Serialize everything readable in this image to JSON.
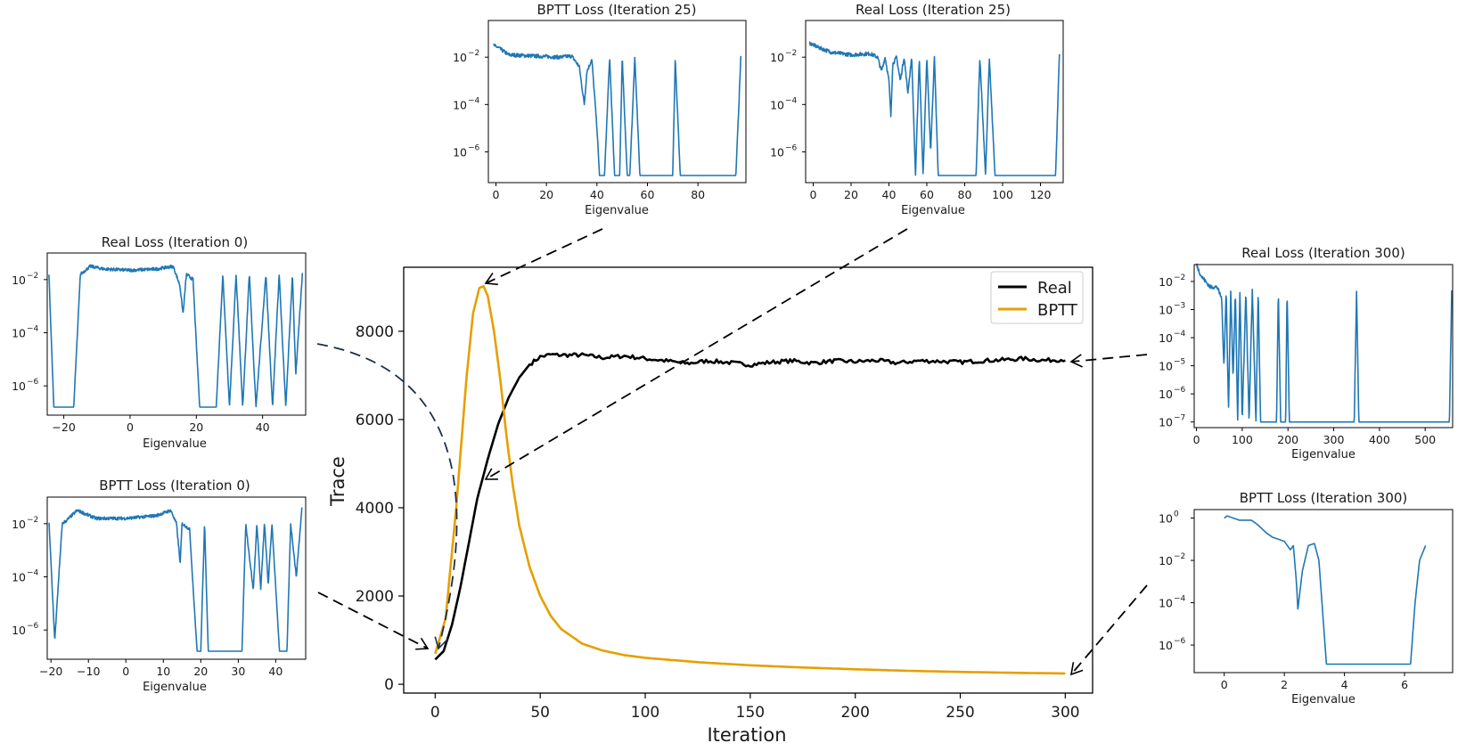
{
  "chart_data": [
    {
      "id": "main",
      "type": "line",
      "xlabel": "Iteration",
      "ylabel": "Trace",
      "xlim": [
        -15,
        313
      ],
      "ylim": [
        -200,
        9450
      ],
      "xticks": [
        0,
        50,
        100,
        150,
        200,
        250,
        300
      ],
      "yticks": [
        0,
        2000,
        4000,
        6000,
        8000
      ],
      "legend": {
        "position": "upper right"
      },
      "series": [
        {
          "name": "Real",
          "color": "#000000",
          "points": [
            [
              0,
              560
            ],
            [
              4,
              750
            ],
            [
              8,
              1350
            ],
            [
              12,
              2200
            ],
            [
              16,
              3200
            ],
            [
              20,
              4200
            ],
            [
              25,
              5100
            ],
            [
              30,
              5900
            ],
            [
              35,
              6500
            ],
            [
              40,
              6950
            ],
            [
              45,
              7250
            ],
            [
              50,
              7420
            ],
            [
              55,
              7470
            ],
            [
              60,
              7460
            ],
            [
              70,
              7460
            ],
            [
              80,
              7400
            ],
            [
              90,
              7440
            ],
            [
              100,
              7380
            ],
            [
              110,
              7330
            ],
            [
              120,
              7270
            ],
            [
              130,
              7330
            ],
            [
              140,
              7290
            ],
            [
              150,
              7240
            ],
            [
              160,
              7300
            ],
            [
              170,
              7330
            ],
            [
              180,
              7280
            ],
            [
              190,
              7330
            ],
            [
              200,
              7310
            ],
            [
              210,
              7340
            ],
            [
              220,
              7280
            ],
            [
              230,
              7330
            ],
            [
              240,
              7320
            ],
            [
              250,
              7300
            ],
            [
              260,
              7330
            ],
            [
              270,
              7350
            ],
            [
              280,
              7380
            ],
            [
              290,
              7340
            ],
            [
              300,
              7360
            ]
          ],
          "noise": 45
        },
        {
          "name": "BPTT",
          "color": "#e69f00",
          "points": [
            [
              0,
              690
            ],
            [
              5,
              1500
            ],
            [
              10,
              4000
            ],
            [
              15,
              7000
            ],
            [
              18,
              8400
            ],
            [
              21,
              8980
            ],
            [
              23,
              9020
            ],
            [
              25,
              8800
            ],
            [
              28,
              8000
            ],
            [
              31,
              6900
            ],
            [
              34,
              5600
            ],
            [
              37,
              4500
            ],
            [
              40,
              3600
            ],
            [
              45,
              2650
            ],
            [
              50,
              2000
            ],
            [
              55,
              1550
            ],
            [
              60,
              1250
            ],
            [
              70,
              920
            ],
            [
              80,
              760
            ],
            [
              90,
              660
            ],
            [
              100,
              600
            ],
            [
              125,
              500
            ],
            [
              150,
              430
            ],
            [
              175,
              380
            ],
            [
              200,
              340
            ],
            [
              225,
              305
            ],
            [
              250,
              280
            ],
            [
              275,
              260
            ],
            [
              300,
              245
            ]
          ]
        }
      ]
    },
    {
      "id": "bptt25",
      "type": "line",
      "title": "BPTT Loss (Iteration 25)",
      "xlabel": "Eigenvalue",
      "yscale": "log",
      "xlim": [
        -3,
        99
      ],
      "ylog": [
        -7.3,
        -0.45
      ],
      "xticks": [
        0,
        20,
        40,
        60,
        80
      ],
      "yticks": [
        -2,
        -4,
        -6
      ],
      "color": "#1f77b4",
      "segments": [
        [
          -1,
          -1.5,
          "s"
        ],
        [
          1,
          -1.6,
          "s"
        ],
        [
          5,
          -1.9,
          "s"
        ],
        [
          15,
          -1.95,
          "s"
        ],
        [
          25,
          -2.0,
          "s"
        ],
        [
          30,
          -1.95,
          "s"
        ],
        [
          33,
          -2.4,
          "s"
        ],
        [
          35,
          -4.0,
          "s"
        ],
        [
          36,
          -2.6,
          "s"
        ],
        [
          38,
          -2.1,
          "s"
        ],
        [
          40,
          -5.0,
          "s"
        ],
        [
          41,
          -7.0,
          "s"
        ],
        [
          43,
          -7.0,
          "s"
        ],
        [
          45,
          -2.0,
          "s"
        ],
        [
          47,
          -7.0,
          "s"
        ],
        [
          49,
          -7.0,
          "s"
        ],
        [
          50,
          -2.0,
          "s"
        ],
        [
          52,
          -7.0,
          "s"
        ],
        [
          53,
          -7.0,
          "s"
        ],
        [
          55,
          -2.0,
          "s"
        ],
        [
          57,
          -7.0,
          "s"
        ],
        [
          70,
          -7.0,
          "s"
        ],
        [
          71,
          -2.0,
          "s"
        ],
        [
          73,
          -7.0,
          "s"
        ],
        [
          95,
          -7.0,
          "s"
        ],
        [
          97,
          -2.0,
          "s"
        ]
      ],
      "noise": 0.08
    },
    {
      "id": "real25",
      "type": "line",
      "title": "Real Loss (Iteration 25)",
      "xlabel": "Eigenvalue",
      "yscale": "log",
      "xlim": [
        -4,
        132
      ],
      "ylog": [
        -7.3,
        -0.45
      ],
      "xticks": [
        0,
        20,
        40,
        60,
        80,
        100,
        120
      ],
      "yticks": [
        -2,
        -4,
        -6
      ],
      "color": "#1f77b4",
      "segments": [
        [
          -2,
          -1.4,
          "s"
        ],
        [
          3,
          -1.6,
          "s"
        ],
        [
          10,
          -1.8,
          "s"
        ],
        [
          20,
          -1.9,
          "s"
        ],
        [
          30,
          -1.85,
          "s"
        ],
        [
          34,
          -2.0,
          "s"
        ],
        [
          36,
          -2.6,
          "s"
        ],
        [
          38,
          -2.0,
          "s"
        ],
        [
          40,
          -3.0,
          "s"
        ],
        [
          41,
          -4.5,
          "s"
        ],
        [
          42,
          -2.3,
          "s"
        ],
        [
          44,
          -2.0,
          "s"
        ],
        [
          46,
          -3.0,
          "s"
        ],
        [
          48,
          -2.0,
          "s"
        ],
        [
          50,
          -3.5,
          "s"
        ],
        [
          52,
          -2.0,
          "s"
        ],
        [
          54,
          -7.0,
          "s"
        ],
        [
          56,
          -2.0,
          "s"
        ],
        [
          58,
          -7.0,
          "s"
        ],
        [
          60,
          -2.0,
          "s"
        ],
        [
          62,
          -6.0,
          "s"
        ],
        [
          64,
          -2.0,
          "s"
        ],
        [
          66,
          -7.0,
          "s"
        ],
        [
          86,
          -7.0,
          "s"
        ],
        [
          88,
          -2.0,
          "s"
        ],
        [
          91,
          -7.0,
          "s"
        ],
        [
          93,
          -2.0,
          "s"
        ],
        [
          96,
          -7.0,
          "s"
        ],
        [
          128,
          -7.0,
          "s"
        ],
        [
          130,
          -1.9,
          "s"
        ]
      ],
      "noise": 0.08
    },
    {
      "id": "real0",
      "type": "line",
      "title": "Real Loss (Iteration 0)",
      "xlabel": "Eigenvalue",
      "yscale": "log",
      "xlim": [
        -25,
        53
      ],
      "ylog": [
        -7.1,
        -1.0
      ],
      "xticks": [
        -20,
        0,
        20,
        40
      ],
      "yticks": [
        -2,
        -4,
        -6
      ],
      "color": "#1f77b4",
      "segments": [
        [
          -24.5,
          -1.8,
          "s"
        ],
        [
          -23,
          -6.8,
          "s"
        ],
        [
          -17,
          -6.8,
          "s"
        ],
        [
          -15,
          -1.8,
          "s"
        ],
        [
          -12,
          -1.5,
          "s"
        ],
        [
          -8,
          -1.6,
          "s"
        ],
        [
          0,
          -1.65,
          "s"
        ],
        [
          8,
          -1.6,
          "s"
        ],
        [
          13,
          -1.5,
          "s"
        ],
        [
          15,
          -2.2,
          "s"
        ],
        [
          16,
          -3.3,
          "s"
        ],
        [
          17,
          -1.8,
          "s"
        ],
        [
          19,
          -2.0,
          "s"
        ],
        [
          21,
          -6.8,
          "s"
        ],
        [
          26,
          -6.8,
          "s"
        ],
        [
          28,
          -1.8,
          "s"
        ],
        [
          30,
          -6.8,
          "s"
        ],
        [
          32,
          -1.8,
          "s"
        ],
        [
          34,
          -6.8,
          "s"
        ],
        [
          36,
          -1.8,
          "s"
        ],
        [
          38,
          -6.8,
          "s"
        ],
        [
          41,
          -1.8,
          "s"
        ],
        [
          43,
          -6.8,
          "s"
        ],
        [
          45,
          -1.8,
          "s"
        ],
        [
          47,
          -6.8,
          "s"
        ],
        [
          49,
          -1.8,
          "s"
        ],
        [
          50,
          -5.6,
          "s"
        ],
        [
          52,
          -1.8,
          "s"
        ]
      ],
      "noise": 0.06
    },
    {
      "id": "bptt0",
      "type": "line",
      "title": "BPTT Loss (Iteration 0)",
      "xlabel": "Eigenvalue",
      "yscale": "log",
      "xlim": [
        -21,
        48
      ],
      "ylog": [
        -7.1,
        -1.0
      ],
      "xticks": [
        -20,
        -10,
        0,
        10,
        20,
        30,
        40
      ],
      "yticks": [
        -2,
        -4,
        -6
      ],
      "color": "#1f77b4",
      "segments": [
        [
          -20.5,
          -2.0,
          "s"
        ],
        [
          -19,
          -6.4,
          "s"
        ],
        [
          -17,
          -2.0,
          "s"
        ],
        [
          -16,
          -1.9,
          "s"
        ],
        [
          -13,
          -1.5,
          "s"
        ],
        [
          -8,
          -1.8,
          "s"
        ],
        [
          0,
          -1.8,
          "s"
        ],
        [
          8,
          -1.7,
          "s"
        ],
        [
          12,
          -1.5,
          "s"
        ],
        [
          13.5,
          -2.0,
          "s"
        ],
        [
          14.5,
          -3.5,
          "s"
        ],
        [
          15,
          -2.0,
          "s"
        ],
        [
          17,
          -2.2,
          "s"
        ],
        [
          19,
          -6.8,
          "s"
        ],
        [
          20,
          -6.8,
          "s"
        ],
        [
          21,
          -2.0,
          "s"
        ],
        [
          22,
          -6.8,
          "s"
        ],
        [
          31,
          -6.8,
          "s"
        ],
        [
          32,
          -2.0,
          "s"
        ],
        [
          34,
          -4.5,
          "s"
        ],
        [
          35,
          -2.0,
          "s"
        ],
        [
          36,
          -4.5,
          "s"
        ],
        [
          37,
          -2.0,
          "s"
        ],
        [
          38,
          -4.3,
          "s"
        ],
        [
          39,
          -2.0,
          "s"
        ],
        [
          41,
          -6.8,
          "s"
        ],
        [
          43,
          -6.8,
          "s"
        ],
        [
          44,
          -2.0,
          "s"
        ],
        [
          45.5,
          -4.0,
          "s"
        ],
        [
          47,
          -1.4,
          "s"
        ]
      ],
      "noise": 0.06
    },
    {
      "id": "real300",
      "type": "line",
      "title": "Real Loss (Iteration 300)",
      "xlabel": "Eigenvalue",
      "yscale": "log",
      "xlim": [
        -5,
        560
      ],
      "ylog": [
        -7.2,
        -1.4
      ],
      "xticks": [
        0,
        100,
        200,
        300,
        400,
        500
      ],
      "yticks": [
        -2,
        -3,
        -4,
        -5,
        -6,
        -7
      ],
      "color": "#1f77b4",
      "segments": [
        [
          0,
          -1.4,
          "s"
        ],
        [
          10,
          -1.8,
          "s"
        ],
        [
          30,
          -2.2,
          "s"
        ],
        [
          45,
          -2.2,
          "s"
        ],
        [
          55,
          -2.6,
          "s"
        ],
        [
          60,
          -5.0,
          "s"
        ],
        [
          65,
          -2.3,
          "s"
        ],
        [
          70,
          -6.6,
          "s"
        ],
        [
          75,
          -2.3,
          "s"
        ],
        [
          80,
          -5.5,
          "s"
        ],
        [
          85,
          -2.3,
          "s"
        ],
        [
          90,
          -7.0,
          "s"
        ],
        [
          95,
          -2.3,
          "s"
        ],
        [
          100,
          -7.0,
          "s"
        ],
        [
          108,
          -2.3,
          "s"
        ],
        [
          115,
          -7.0,
          "s"
        ],
        [
          122,
          -2.3,
          "s"
        ],
        [
          130,
          -7.0,
          "s"
        ],
        [
          135,
          -2.3,
          "s"
        ],
        [
          140,
          -7.0,
          "s"
        ],
        [
          175,
          -7.0,
          "s"
        ],
        [
          179,
          -2.3,
          "s"
        ],
        [
          184,
          -7.0,
          "s"
        ],
        [
          195,
          -7.0,
          "s"
        ],
        [
          198,
          -2.3,
          "s"
        ],
        [
          203,
          -7.0,
          "s"
        ],
        [
          345,
          -7.0,
          "s"
        ],
        [
          350,
          -2.3,
          "s"
        ],
        [
          355,
          -7.0,
          "s"
        ],
        [
          553,
          -7.0,
          "s"
        ],
        [
          558,
          -2.3,
          "s"
        ]
      ],
      "noise": 0.07
    },
    {
      "id": "bptt300",
      "type": "line",
      "title": "BPTT Loss (Iteration 300)",
      "xlabel": "Eigenvalue",
      "yscale": "log",
      "xlim": [
        -1,
        7.6
      ],
      "ylog": [
        -7.3,
        0.4
      ],
      "xticks": [
        0,
        2,
        4,
        6
      ],
      "yticks": [
        0,
        -2,
        -4,
        -6
      ],
      "color": "#1f77b4",
      "segments": [
        [
          0,
          0.0,
          "s"
        ],
        [
          0.1,
          0.1,
          "s"
        ],
        [
          0.5,
          -0.1,
          "s"
        ],
        [
          0.9,
          -0.1,
          "s"
        ],
        [
          1.1,
          -0.3,
          "s"
        ],
        [
          1.4,
          -0.7,
          "s"
        ],
        [
          1.6,
          -0.9,
          "s"
        ],
        [
          1.8,
          -1.0,
          "s"
        ],
        [
          2.0,
          -1.1,
          "s"
        ],
        [
          2.2,
          -1.5,
          "s"
        ],
        [
          2.3,
          -1.3,
          "s"
        ],
        [
          2.4,
          -3.0,
          "s"
        ],
        [
          2.45,
          -4.3,
          "s"
        ],
        [
          2.6,
          -2.5,
          "s"
        ],
        [
          2.8,
          -1.3,
          "s"
        ],
        [
          3.0,
          -1.2,
          "s"
        ],
        [
          3.15,
          -2.0,
          "s"
        ],
        [
          3.4,
          -6.9,
          "s"
        ],
        [
          6.2,
          -6.9,
          "s"
        ],
        [
          6.35,
          -4.0,
          "s"
        ],
        [
          6.5,
          -2.0,
          "s"
        ],
        [
          6.7,
          -1.3,
          "s"
        ]
      ],
      "noise": 0.0
    }
  ]
}
